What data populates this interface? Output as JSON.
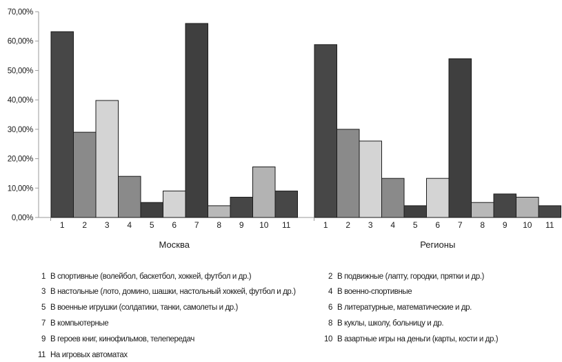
{
  "chart_data": {
    "type": "bar",
    "ylim": [
      0,
      70
    ],
    "y_ticks": [
      "0,00%",
      "10,00%",
      "20,00%",
      "30,00%",
      "40,00%",
      "50,00%",
      "60,00%",
      "70,00%"
    ],
    "grid": false,
    "groups": [
      {
        "name": "Москва",
        "categories": [
          "1",
          "2",
          "3",
          "4",
          "5",
          "6",
          "7",
          "8",
          "9",
          "10",
          "11"
        ],
        "values": [
          63.2,
          29.0,
          39.8,
          14.0,
          5.1,
          9.0,
          66.0,
          4.0,
          6.9,
          17.2,
          9.0
        ]
      },
      {
        "name": "Регионы",
        "categories": [
          "1",
          "2",
          "3",
          "4",
          "5",
          "6",
          "7",
          "8",
          "9",
          "10",
          "11"
        ],
        "values": [
          58.8,
          30.0,
          26.0,
          13.3,
          4.0,
          13.3,
          54.0,
          5.1,
          8.0,
          6.9,
          4.0
        ]
      }
    ],
    "bar_colors": [
      "#474747",
      "#8a8a8a",
      "#d4d4d4",
      "#8a8a8a",
      "#404040",
      "#d4d4d4",
      "#3f3f3f",
      "#b8b8b8",
      "#464646",
      "#b3b3b3",
      "#474747"
    ],
    "legend": [
      {
        "num": "1",
        "text": "В спортивные (волейбол, баскетбол, хоккей, футбол и др.)"
      },
      {
        "num": "2",
        "text": "В подвижные (лапту, городки, прятки и др.)"
      },
      {
        "num": "3",
        "text": "В настольные (лото, домино, шашки, настольный хоккей, футбол и др.)"
      },
      {
        "num": "4",
        "text": "В военно-спортивные"
      },
      {
        "num": "5",
        "text": "В военные игрушки (солдатики, танки, самолеты и др.)"
      },
      {
        "num": "6",
        "text": "В литературные, математические и др."
      },
      {
        "num": "7",
        "text": "В компьютерные"
      },
      {
        "num": "8",
        "text": "В куклы, школу, больницу и др."
      },
      {
        "num": "9",
        "text": "В героев книг, кинофильмов, телепередач"
      },
      {
        "num": "10",
        "text": "В азартные игры на деньги (карты, кости и др.)"
      },
      {
        "num": "11",
        "text": "На игровых автоматах"
      }
    ]
  }
}
